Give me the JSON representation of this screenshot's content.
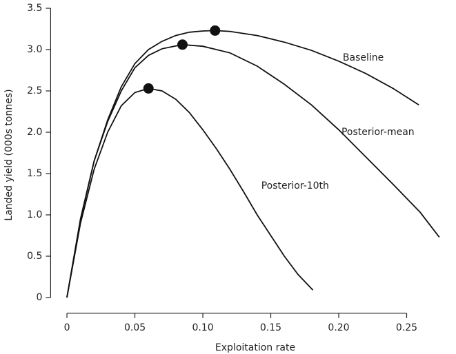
{
  "chart_data": {
    "type": "line",
    "xlabel": "Exploitation rate",
    "ylabel": "Landed yield (000s tonnes)",
    "xlim": [
      -0.012,
      0.28
    ],
    "ylim": [
      -0.19,
      3.6
    ],
    "xticks": [
      0,
      0.05,
      {
        "value": 0.1,
        "label": "0.10"
      },
      0.15,
      {
        "value": 0.2,
        "label": "0.20"
      },
      0.25
    ],
    "yticks": [
      0,
      0.5,
      {
        "value": 1,
        "label": "1.0"
      },
      1.5,
      {
        "value": 2,
        "label": "2.0"
      },
      2.5,
      {
        "value": 3,
        "label": "3.0"
      },
      3.5
    ],
    "series": [
      {
        "name": "Baseline",
        "color": "#111111",
        "x": [
          0,
          0.01,
          0.02,
          0.03,
          0.04,
          0.05,
          0.06,
          0.07,
          0.08,
          0.09,
          0.1,
          0.109,
          0.12,
          0.14,
          0.16,
          0.18,
          0.2,
          0.22,
          0.24,
          0.259
        ],
        "values": [
          0,
          0.95,
          1.65,
          2.15,
          2.55,
          2.83,
          3.0,
          3.1,
          3.17,
          3.21,
          3.225,
          3.23,
          3.22,
          3.17,
          3.09,
          2.99,
          2.86,
          2.71,
          2.53,
          2.33
        ],
        "peak": {
          "x": 0.109,
          "y": 3.23
        }
      },
      {
        "name": "Posterior-mean",
        "color": "#111111",
        "x": [
          0,
          0.01,
          0.02,
          0.03,
          0.04,
          0.05,
          0.06,
          0.07,
          0.085,
          0.1,
          0.12,
          0.14,
          0.16,
          0.18,
          0.2,
          0.22,
          0.24,
          0.26,
          0.274
        ],
        "values": [
          0,
          0.95,
          1.65,
          2.13,
          2.5,
          2.78,
          2.93,
          3.01,
          3.06,
          3.04,
          2.96,
          2.8,
          2.58,
          2.33,
          2.03,
          1.7,
          1.37,
          1.03,
          0.73
        ],
        "peak": {
          "x": 0.085,
          "y": 3.06
        }
      },
      {
        "name": "Posterior-10th",
        "color": "#111111",
        "x": [
          0,
          0.01,
          0.02,
          0.03,
          0.04,
          0.05,
          0.06,
          0.07,
          0.08,
          0.09,
          0.1,
          0.11,
          0.12,
          0.13,
          0.14,
          0.15,
          0.16,
          0.17,
          0.181
        ],
        "values": [
          0,
          0.9,
          1.55,
          2.0,
          2.32,
          2.48,
          2.53,
          2.5,
          2.4,
          2.24,
          2.03,
          1.8,
          1.55,
          1.28,
          1.0,
          0.75,
          0.5,
          0.28,
          0.09
        ],
        "peak": {
          "x": 0.06,
          "y": 2.53
        }
      }
    ]
  }
}
